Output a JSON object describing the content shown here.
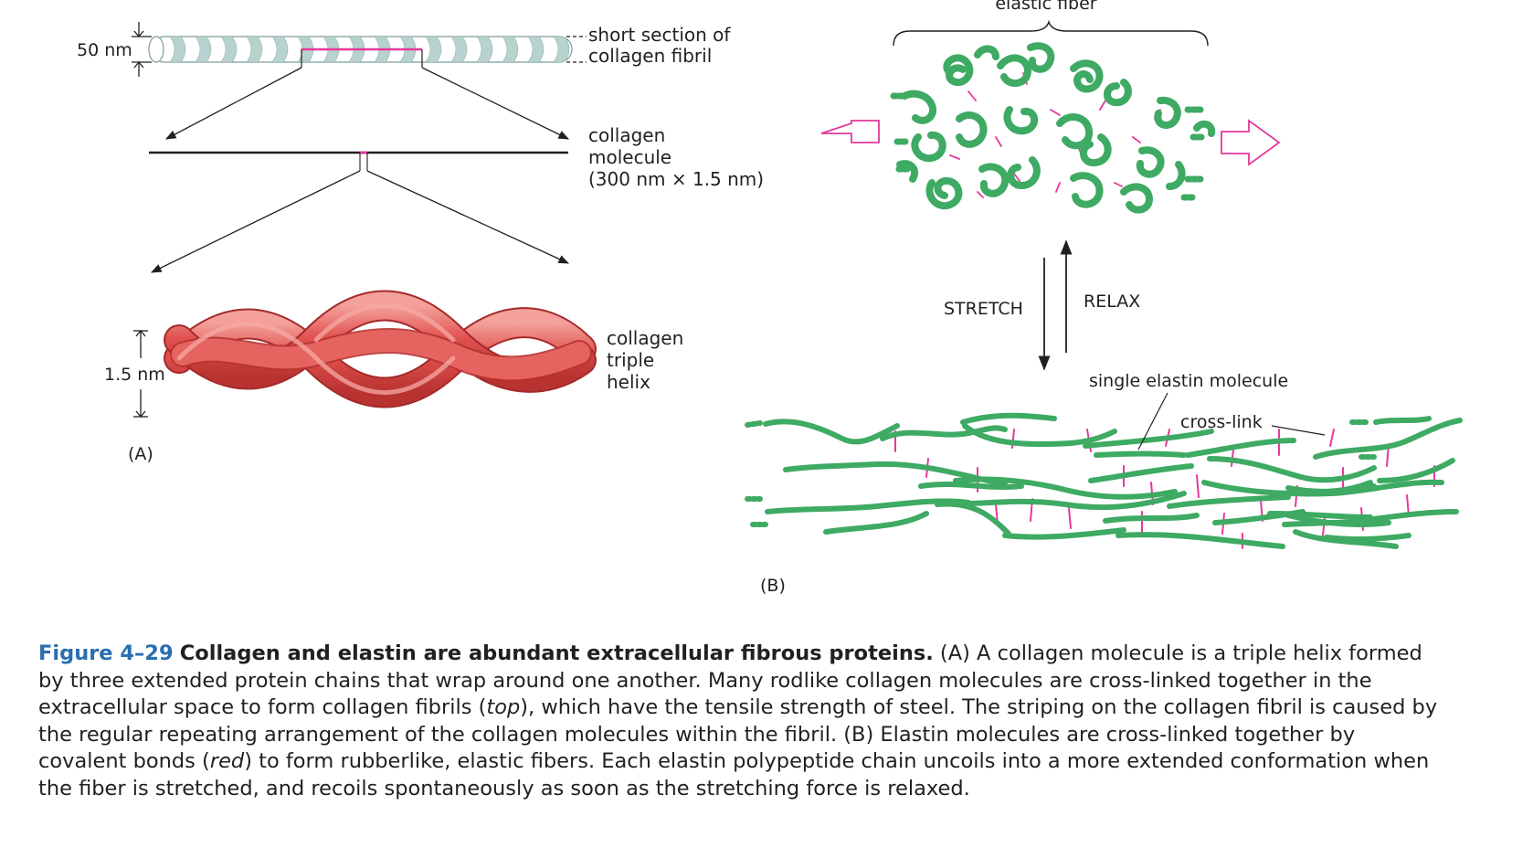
{
  "panel_a": {
    "fibril_diameter_label": "50 nm",
    "fibril_label_line1": "short section of",
    "fibril_label_line2": "collagen fibril",
    "molecule_label_line1": "collagen",
    "molecule_label_line2": "molecule",
    "molecule_label_line3": "(300 nm × 1.5 nm)",
    "helix_label_line1": "collagen",
    "helix_label_line2": "triple",
    "helix_label_line3": "helix",
    "helix_diameter_label": "1.5 nm",
    "panel_letter": "(A)"
  },
  "panel_b": {
    "elastic_fiber_label": "elastic fiber",
    "stretch_label": "STRETCH",
    "relax_label": "RELAX",
    "single_elastin_label": "single elastin molecule",
    "cross_link_label": "cross-link",
    "panel_letter": "(B)"
  },
  "caption": {
    "figure_number": "Figure 4–29",
    "title": "Collagen and elastin are abundant extracellular fibrous proteins.",
    "text_1": " (A) A collagen molecule is a triple helix formed by three extended protein chains that wrap around one another. Many rodlike collagen molecules are cross-linked together in the extracellular space to form collagen fibrils (",
    "italic_1": "top",
    "text_2": "), which have the tensile strength of steel. The striping on the collagen fibril is caused by the regular repeating arrangement of the collagen molecules within the fibril. (B) Elastin molecules are cross-linked together by covalent bonds (",
    "italic_2": "red",
    "text_3": ") to form rubberlike, elastic fibers. Each elastin polypeptide chain uncoils into a more extended conformation when the fiber is stretched, and recoils spontaneously as soon as the stretching force is relaxed."
  },
  "colors": {
    "fibril_stripe": "#b8d3cf",
    "collagen_red": "#e0524f",
    "elastin_green": "#3eaa63",
    "crosslink_pink": "#e6389c",
    "caption_blue": "#2a6db0"
  }
}
